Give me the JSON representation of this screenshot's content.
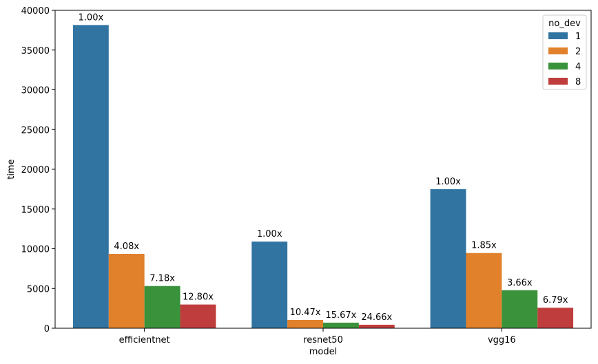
{
  "chart_data": {
    "type": "bar",
    "categories": [
      "efficientnet",
      "resnet50",
      "vgg16"
    ],
    "xlabel": "model",
    "ylabel": "time",
    "ylim": [
      0,
      40000
    ],
    "yticks": [
      0,
      5000,
      10000,
      15000,
      20000,
      25000,
      30000,
      35000,
      40000
    ],
    "grid": false,
    "legend": {
      "title": "no_dev",
      "placement": "top-right"
    },
    "series": [
      {
        "name": "1",
        "color": "#3274a1",
        "values": [
          38150,
          10900,
          17500
        ],
        "labels": [
          "1.00x",
          "1.00x",
          "1.00x"
        ]
      },
      {
        "name": "2",
        "color": "#e1812c",
        "values": [
          9350,
          1040,
          9460
        ],
        "labels": [
          "4.08x",
          "10.47x",
          "1.85x"
        ]
      },
      {
        "name": "4",
        "color": "#3a923a",
        "values": [
          5310,
          700,
          4780
        ],
        "labels": [
          "7.18x",
          "15.67x",
          "3.66x"
        ]
      },
      {
        "name": "8",
        "color": "#c03d3e",
        "values": [
          2980,
          440,
          2580
        ],
        "labels": [
          "12.80x",
          "24.66x",
          "6.79x"
        ]
      }
    ]
  }
}
